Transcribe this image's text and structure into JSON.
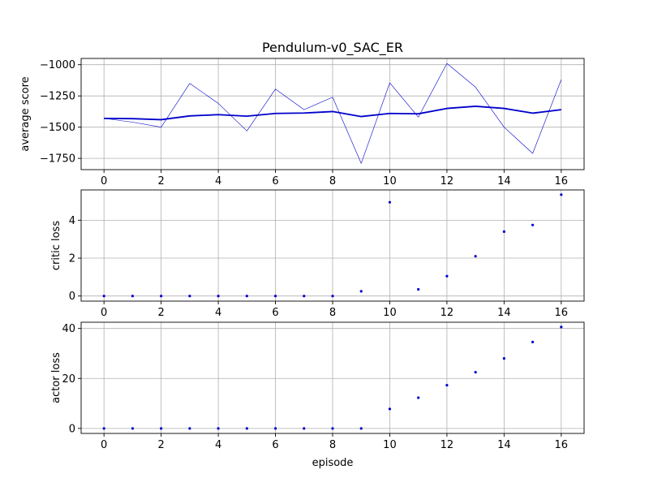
{
  "title": "Pendulum-v0_SAC_ER",
  "xlabel": "episode",
  "colors": {
    "line": "#0000cc",
    "grid": "#b0b0b0",
    "axis": "#000000"
  },
  "chart_data": [
    {
      "type": "line",
      "title": "Pendulum-v0_SAC_ER",
      "xlabel": "",
      "ylabel": "average score",
      "xlim": [
        -0.8,
        16.8
      ],
      "ylim": [
        -1840,
        -950
      ],
      "xticks": [
        0,
        2,
        4,
        6,
        8,
        10,
        12,
        14,
        16
      ],
      "yticks": [
        -1750,
        -1500,
        -1250,
        -1000
      ],
      "ytick_labels": [
        "−1750",
        "−1500",
        "−1250",
        "−1000"
      ],
      "grid": true,
      "x": [
        0,
        1,
        2,
        3,
        4,
        5,
        6,
        7,
        8,
        9,
        10,
        11,
        12,
        13,
        14,
        15,
        16
      ],
      "series": [
        {
          "values": [
            -1430,
            -1460,
            -1500,
            -1150,
            -1310,
            -1530,
            -1195,
            -1360,
            -1260,
            -1790,
            -1145,
            -1420,
            -990,
            -1180,
            -1500,
            -1710,
            -1120
          ],
          "style": "thin"
        },
        {
          "values": [
            -1430,
            -1432,
            -1440,
            -1410,
            -1400,
            -1412,
            -1390,
            -1387,
            -1375,
            -1415,
            -1390,
            -1393,
            -1350,
            -1333,
            -1350,
            -1388,
            -1360
          ],
          "style": "thick"
        }
      ]
    },
    {
      "type": "scatter",
      "xlabel": "",
      "ylabel": "critic loss",
      "xlim": [
        -0.8,
        16.8
      ],
      "ylim": [
        -0.27,
        5.6
      ],
      "xticks": [
        0,
        2,
        4,
        6,
        8,
        10,
        12,
        14,
        16
      ],
      "yticks": [
        0,
        2,
        4
      ],
      "ytick_labels": [
        "0",
        "2",
        "4"
      ],
      "grid": true,
      "x": [
        0,
        1,
        2,
        3,
        4,
        5,
        6,
        7,
        8,
        9,
        10,
        11,
        12,
        13,
        14,
        15,
        16
      ],
      "values": [
        0,
        0,
        0,
        0,
        0,
        0,
        0,
        0,
        0,
        0.25,
        4.95,
        0.35,
        1.05,
        2.1,
        3.4,
        3.75,
        5.35
      ]
    },
    {
      "type": "scatter",
      "xlabel": "episode",
      "ylabel": "actor loss",
      "xlim": [
        -0.8,
        16.8
      ],
      "ylim": [
        -2,
        42.5
      ],
      "xticks": [
        0,
        2,
        4,
        6,
        8,
        10,
        12,
        14,
        16
      ],
      "yticks": [
        0,
        20,
        40
      ],
      "ytick_labels": [
        "0",
        "20",
        "40"
      ],
      "grid": true,
      "x": [
        0,
        1,
        2,
        3,
        4,
        5,
        6,
        7,
        8,
        9,
        10,
        11,
        12,
        13,
        14,
        15,
        16
      ],
      "values": [
        0,
        0,
        0,
        0,
        0,
        0,
        0,
        0,
        0,
        0,
        7.8,
        12.3,
        17.3,
        22.5,
        28.0,
        34.6,
        40.6
      ]
    }
  ]
}
